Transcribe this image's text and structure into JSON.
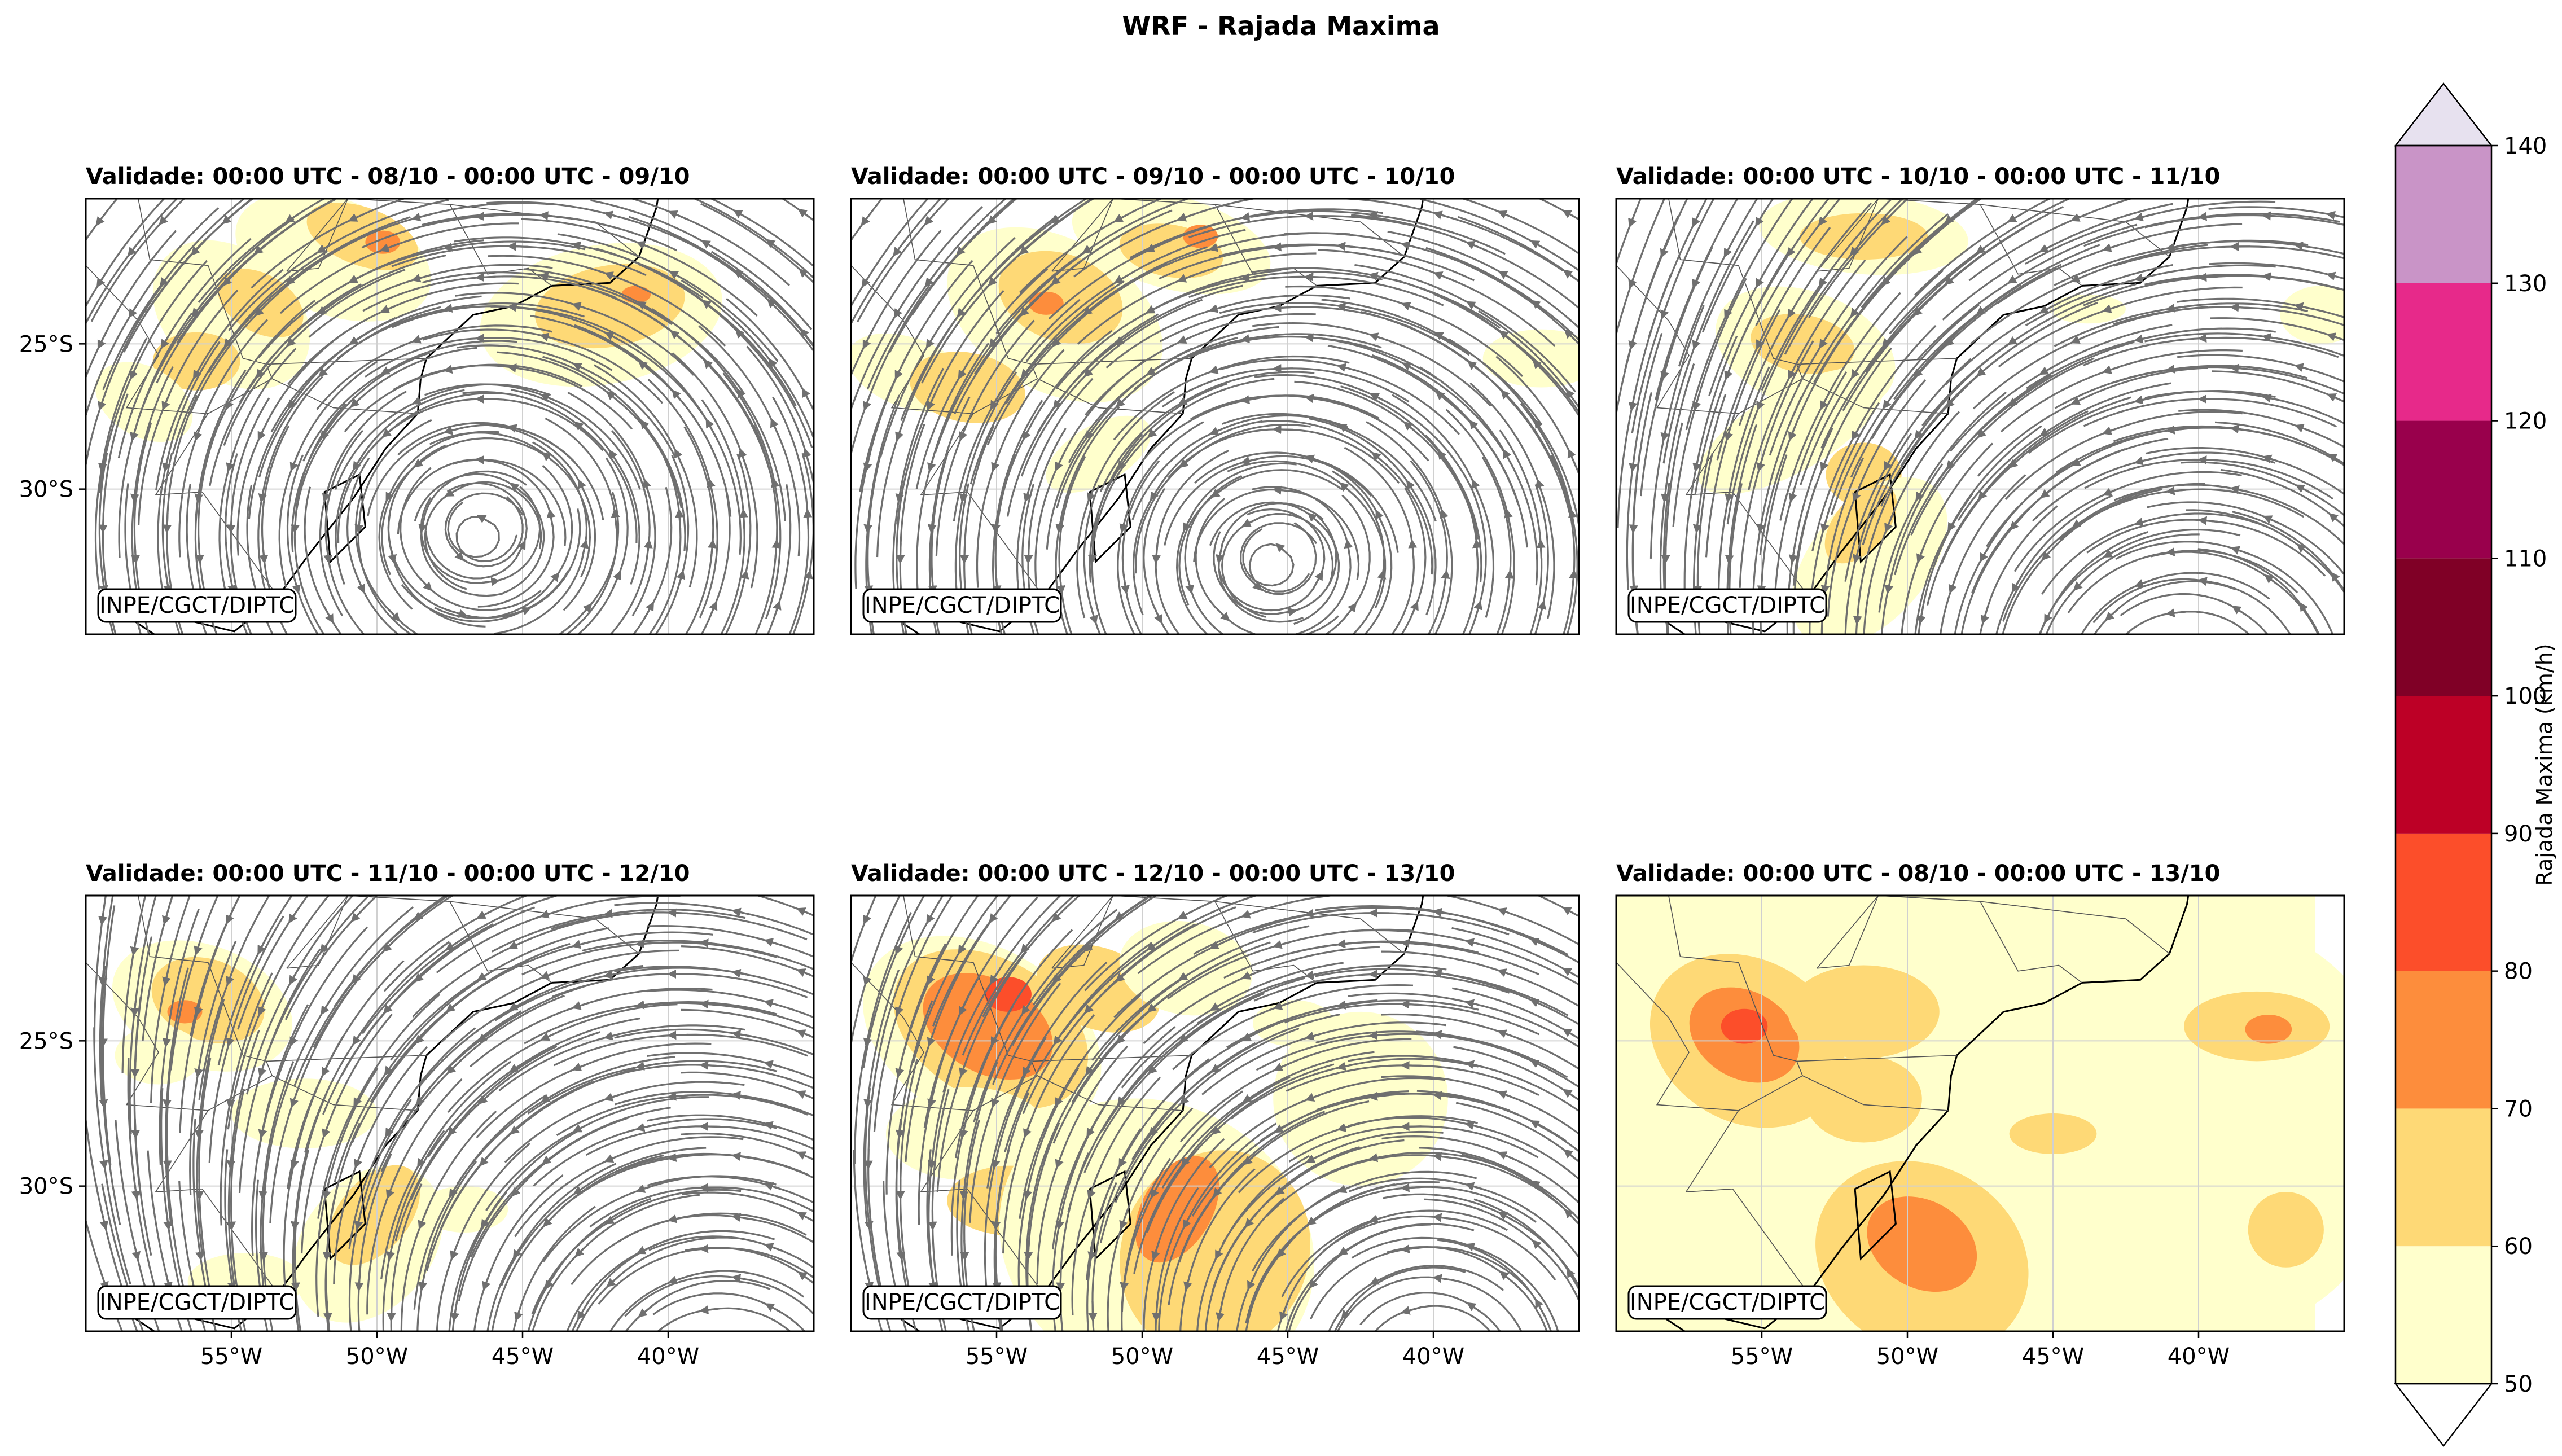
{
  "chart_data": {
    "type": "heatmap",
    "title": "WRF - Rajada Maxima",
    "watermark_label": "INPE/CGCT/DIPTC",
    "x_ticks": [
      "55°W",
      "50°W",
      "45°W",
      "40°W"
    ],
    "y_ticks": [
      "25°S",
      "30°S"
    ],
    "lon_range": [
      -60,
      -35
    ],
    "lat_range": [
      -35,
      -20
    ],
    "colorbar": {
      "label": "Rajada Maxima (km/h)",
      "levels": [
        50,
        60,
        70,
        80,
        90,
        100,
        110,
        120,
        130,
        140
      ],
      "colors": [
        "#ffffcc",
        "#fed976",
        "#fd8d3c",
        "#fc4e2a",
        "#bd0026",
        "#800026",
        "#99004c",
        "#e7298a",
        "#c994c7",
        "#e7e1ef"
      ],
      "extend": "both",
      "under_color": "#ffffff"
    },
    "panels": [
      {
        "title": "Validade: 00:00 UTC - 08/10 - 00:00 UTC - 09/10",
        "show_x_ticks": false,
        "show_y_ticks": true
      },
      {
        "title": "Validade: 00:00 UTC - 09/10 - 00:00 UTC - 10/10",
        "show_x_ticks": false,
        "show_y_ticks": false
      },
      {
        "title": "Validade: 00:00 UTC - 10/10 - 00:00 UTC - 11/10",
        "show_x_ticks": false,
        "show_y_ticks": false
      },
      {
        "title": "Validade: 00:00 UTC - 11/10 - 00:00 UTC - 12/10",
        "show_x_ticks": true,
        "show_y_ticks": true
      },
      {
        "title": "Validade: 00:00 UTC - 12/10 - 00:00 UTC - 13/10",
        "show_x_ticks": true,
        "show_y_ticks": false
      },
      {
        "title": "Validade: 00:00 UTC - 08/10 - 00:00 UTC - 13/10",
        "show_x_ticks": true,
        "show_y_ticks": false
      }
    ]
  }
}
